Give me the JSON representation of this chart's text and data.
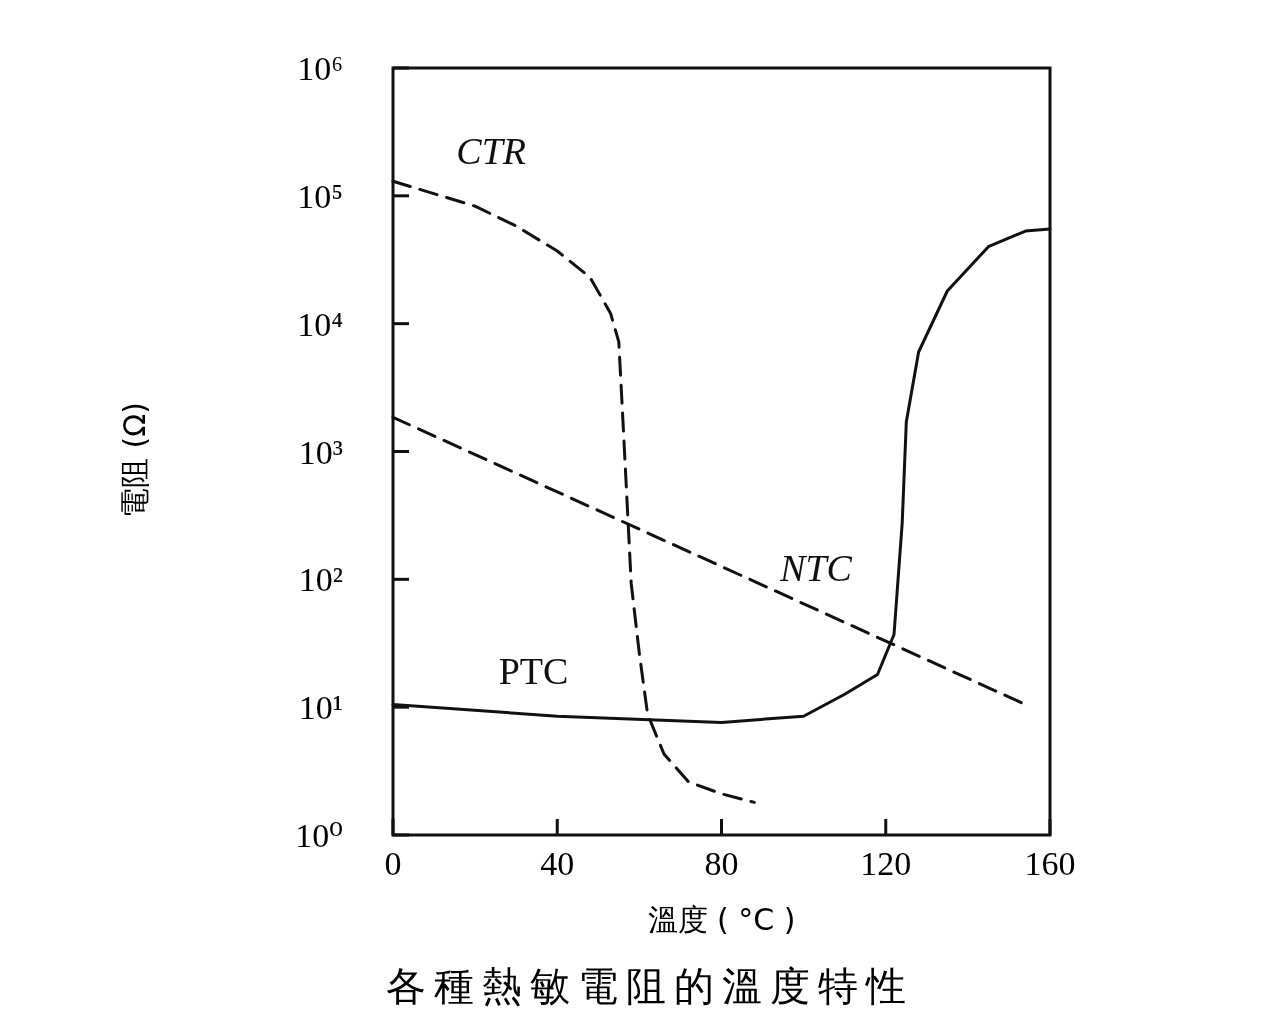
{
  "chart_data": {
    "type": "line",
    "title": "各種熱敏電阻的溫度特性",
    "xlabel": "溫度 ( °C )",
    "ylabel": "電阻 (Ω)",
    "log": "y",
    "xlim": [
      0,
      160
    ],
    "xticks": [
      0,
      40,
      80,
      120,
      160
    ],
    "ylim": [
      1,
      1000000
    ],
    "yticks": [
      {
        "value": 1,
        "label": "10⁰"
      },
      {
        "value": 10,
        "label": "10¹"
      },
      {
        "value": 100,
        "label": "10²"
      },
      {
        "value": 1000,
        "label": "10³"
      },
      {
        "value": 10000,
        "label": "10⁴"
      },
      {
        "value": 100000,
        "label": "10⁵"
      },
      {
        "value": 1000000,
        "label": "10⁶"
      }
    ],
    "grid": false,
    "marker": "none",
    "series": [
      {
        "name": "CTR",
        "color": "#111111",
        "line_style": "dashed",
        "x": [
          0,
          20,
          30,
          40,
          48,
          53,
          55,
          56,
          57,
          58,
          60,
          62,
          66,
          72,
          80,
          88
        ],
        "values": [
          130000,
          83000,
          58000,
          37000,
          23000,
          12000,
          7200,
          1700,
          400,
          93,
          26,
          8.8,
          4.3,
          2.6,
          2.1,
          1.8
        ]
      },
      {
        "name": "NTC",
        "color": "#111111",
        "line_style": "dashed",
        "x": [
          0,
          154
        ],
        "values": [
          1850,
          10.5
        ]
      },
      {
        "name": "PTC",
        "color": "#111111",
        "line_style": "solid",
        "x": [
          0,
          40,
          80,
          100,
          110,
          118,
          122,
          124,
          125,
          128,
          135,
          145,
          154,
          160
        ],
        "values": [
          10.5,
          8.5,
          7.6,
          8.5,
          12.6,
          18,
          37,
          276,
          1700,
          6000,
          18000,
          40000,
          53000,
          55000
        ]
      }
    ]
  }
}
